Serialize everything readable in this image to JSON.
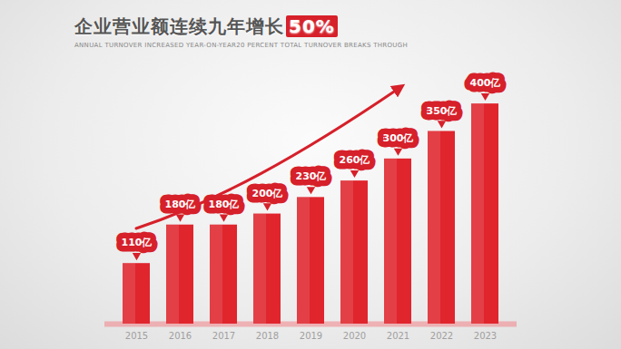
{
  "chart_data": {
    "type": "bar",
    "title": "企业营业额连续九年增长50%",
    "subtitle": "ANNUAL TURNOVER INCREASED YEAR-ON-YEAR20 PERCENT TOTAL TURNOVER BREAKS THROUGH",
    "categories": [
      "2015",
      "2016",
      "2017",
      "2018",
      "2019",
      "2020",
      "2021",
      "2022",
      "2023"
    ],
    "values": [
      110,
      180,
      180,
      200,
      230,
      260,
      300,
      350,
      400
    ],
    "value_labels": [
      "110亿",
      "180亿",
      "180亿",
      "200亿",
      "230亿",
      "260亿",
      "300亿",
      "350亿",
      "400亿"
    ],
    "color": "#e0252d",
    "ylim": [
      0,
      420
    ],
    "data_labels": true,
    "tick_labels": "x"
  }
}
